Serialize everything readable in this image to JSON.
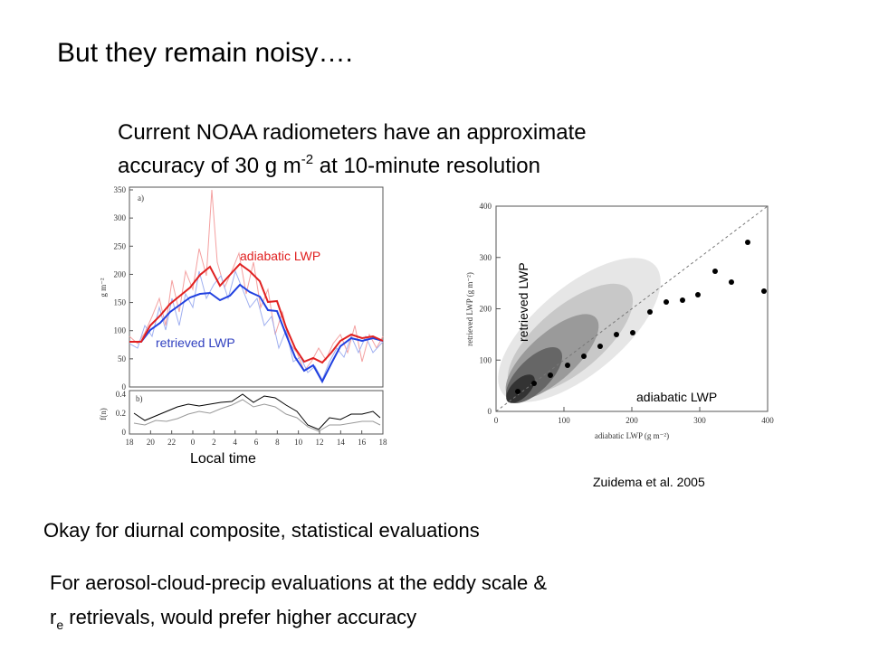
{
  "title": "But they remain noisy….",
  "subtitle": {
    "line1": "Current NOAA radiometers have an approximate",
    "line2_start": "accuracy of 30 g m",
    "line2_sup": "-2",
    "line2_end": " at 10-minute resolution"
  },
  "figure_left": {
    "panel_a": "a)",
    "panel_b": "b)",
    "y_label": "g m⁻²",
    "b_y_label": "f(n)",
    "yticks": [
      "0",
      "50",
      "100",
      "150",
      "200",
      "250",
      "300",
      "350"
    ],
    "b_yticks": [
      "0",
      "0.2",
      "0.4"
    ],
    "xticks": [
      "18",
      "20",
      "22",
      "0",
      "2",
      "4",
      "6",
      "8",
      "10",
      "12",
      "14",
      "16",
      "18"
    ],
    "adiabatic_label": "adiabatic LWP",
    "retrieved_label": "retrieved LWP",
    "x_caption": "Local time"
  },
  "figure_right": {
    "xticks": [
      "0",
      "100",
      "200",
      "300",
      "400"
    ],
    "yticks": [
      "0",
      "100",
      "200",
      "300",
      "400"
    ],
    "x_axis_label": "adiabatic LWP (g m⁻²)",
    "y_axis_label": "retrieved LWP (g m⁻²)",
    "retrieved_label": "retrieved LWP",
    "adiabatic_label": "adiabatic LWP"
  },
  "citation": "Zuidema et al. 2005",
  "bullets": {
    "first": "Okay for diurnal composite, statistical evaluations",
    "second_line1": "For aerosol-cloud-precip evaluations at the eddy scale &",
    "second_line2_start": "r",
    "second_line2_sub": "e",
    "second_line2_end": " retrievals, would prefer higher accuracy"
  }
}
